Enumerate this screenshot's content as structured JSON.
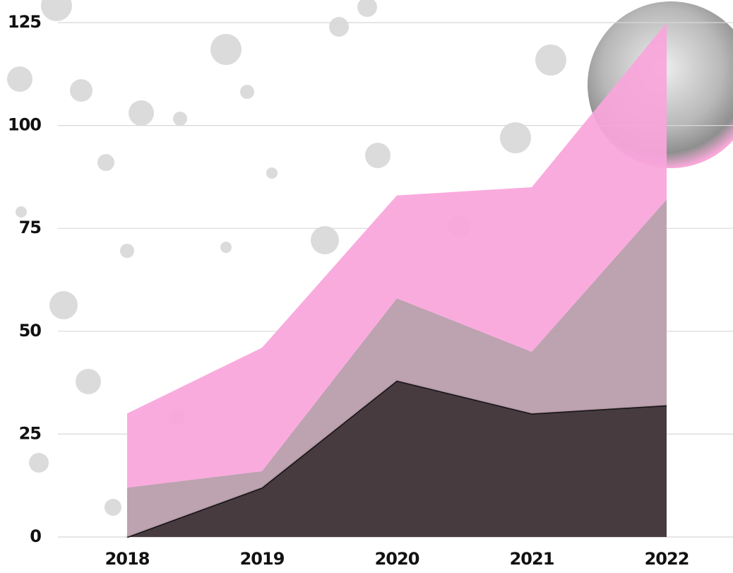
{
  "chart_data": {
    "type": "stacked_area",
    "categories": [
      "2018",
      "2019",
      "2020",
      "2021",
      "2022"
    ],
    "series": [
      {
        "color": "#3e3035",
        "values": [
          0,
          12,
          38,
          30,
          32
        ]
      },
      {
        "color": "#b99dab",
        "values": [
          12,
          4,
          20,
          15,
          50
        ]
      },
      {
        "color": "#f9a5dc",
        "values": [
          18,
          30,
          25,
          40,
          43
        ]
      }
    ],
    "ylim": [
      0,
      125
    ],
    "yticks": [
      0,
      25,
      50,
      75,
      100,
      125
    ],
    "grid": true
  }
}
